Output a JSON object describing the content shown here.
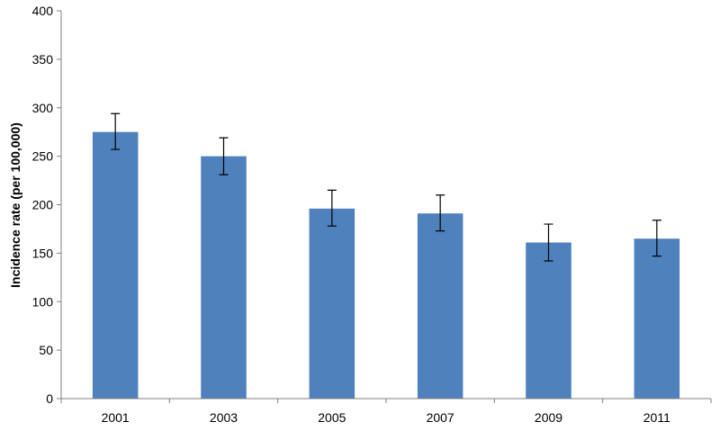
{
  "chart_data": {
    "type": "bar",
    "title": "",
    "xlabel": "",
    "ylabel": "Incidence rate (per 100,000)",
    "ylim": [
      0,
      400
    ],
    "yticks": [
      0,
      50,
      100,
      150,
      200,
      250,
      300,
      350,
      400
    ],
    "categories": [
      "2001",
      "2003",
      "2005",
      "2007",
      "2009",
      "2011"
    ],
    "series": [
      {
        "values": [
          275,
          250,
          196,
          191,
          161,
          165
        ],
        "error_low": [
          257,
          231,
          178,
          173,
          142,
          147
        ],
        "error_high": [
          294,
          269,
          215,
          210,
          180,
          184
        ],
        "color": "#4F81BD"
      }
    ],
    "grid": false,
    "legend": "none"
  }
}
